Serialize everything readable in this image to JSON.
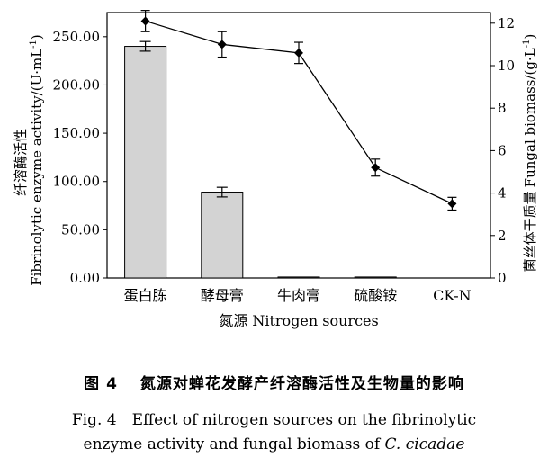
{
  "chart_data": {
    "type": "bar",
    "categories": [
      "蛋白胨",
      "酵母膏",
      "牛肉膏",
      "硫酸铵",
      "CK-N"
    ],
    "xlabel": "氮源 Nitrogen sources",
    "series": [
      {
        "name": "Fibrinolytic enzyme activity",
        "kind": "bar",
        "axis": "left",
        "values": [
          240,
          89,
          1,
          1,
          0
        ],
        "errors": [
          5,
          5,
          0,
          0,
          0
        ]
      },
      {
        "name": "Fungal biomass",
        "kind": "line",
        "axis": "right",
        "values": [
          12.1,
          11.0,
          10.6,
          5.2,
          3.5
        ],
        "errors": [
          0.5,
          0.6,
          0.5,
          0.4,
          0.3
        ]
      }
    ],
    "left_axis": {
      "label_cn": "纤溶酶活性",
      "label_en": "Fibrinolytic enzyme activity/(U·mL",
      "label_sup": "-1",
      "label_end": ")",
      "ylim": [
        0,
        275
      ],
      "ticks": [
        0,
        50,
        100,
        150,
        200,
        250
      ],
      "tick_labels": [
        "0.00",
        "50.00",
        "100.00",
        "150.00",
        "200.00",
        "250.00"
      ]
    },
    "right_axis": {
      "label_cn": "菌丝体干质量",
      "label_en": "Fungal biomass/(g·L",
      "label_sup": "-1",
      "label_end": ")",
      "ylim": [
        0,
        12.5
      ],
      "ticks": [
        0,
        2,
        4,
        6,
        8,
        10,
        12
      ],
      "tick_labels": [
        "0",
        "2",
        "4",
        "6",
        "8",
        "10",
        "12"
      ]
    },
    "colors": {
      "bar_fill": "#d3d3d3",
      "line": "#000000",
      "axis": "#000000"
    }
  },
  "caption": {
    "cn": "图 4　 氮源对蝉花发酵产纤溶酶活性及生物量的影响",
    "en_line1": "Fig. 4　Effect of nitrogen sources on the fibrinolytic",
    "en_line2_prefix": "enzyme activity and fungal biomass of ",
    "en_line2_species": "C. cicadae"
  }
}
